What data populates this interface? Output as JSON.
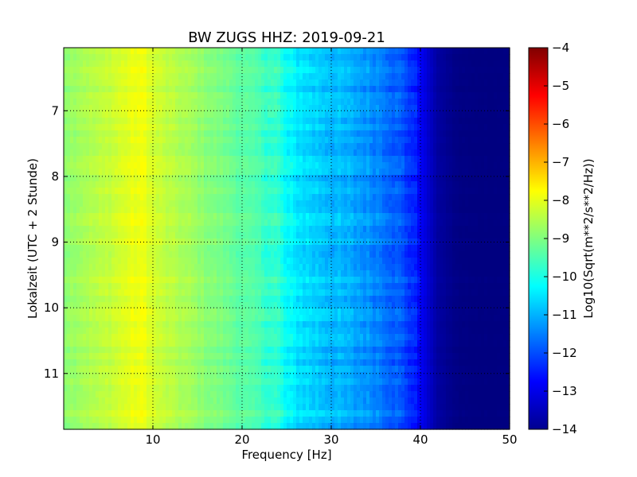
{
  "chart_data": {
    "type": "heatmap",
    "title": "BW ZUGS HHZ: 2019-09-21",
    "xlabel": "Frequency [Hz]",
    "ylabel": "Lokalzeit (UTC + 2 Stunde)",
    "xlim": [
      0,
      50
    ],
    "ylim": [
      6.04,
      11.85
    ],
    "y_inverted": true,
    "xticks": [
      10,
      20,
      30,
      40,
      50
    ],
    "yticks": [
      7,
      8,
      9,
      10,
      11
    ],
    "grid": true,
    "colormap": "jet",
    "colorbar": {
      "label": "Log10(Sqrt(m**2/s**2/Hz))",
      "range": [
        -14,
        -4
      ],
      "ticks": [
        -4,
        -5,
        -6,
        -7,
        -8,
        -9,
        -10,
        -11,
        -12,
        -13,
        -14
      ]
    },
    "frequency_profile": {
      "frequency_hz": [
        0,
        2,
        4,
        6,
        8,
        9,
        10,
        12,
        14,
        16,
        18,
        20,
        22,
        24,
        25,
        26,
        28,
        30,
        32,
        34,
        36,
        38,
        39,
        40,
        41,
        42,
        44,
        46,
        48,
        50
      ],
      "level": [
        -8.85,
        -8.6,
        -8.45,
        -8.2,
        -7.95,
        -7.9,
        -8.2,
        -8.45,
        -8.65,
        -8.9,
        -9.1,
        -9.35,
        -9.55,
        -9.8,
        -10.3,
        -10.45,
        -10.7,
        -10.9,
        -11.1,
        -11.3,
        -11.55,
        -12.0,
        -12.3,
        -12.8,
        -13.3,
        -13.7,
        -13.95,
        -14.0,
        -14.0,
        -14.0
      ]
    }
  }
}
